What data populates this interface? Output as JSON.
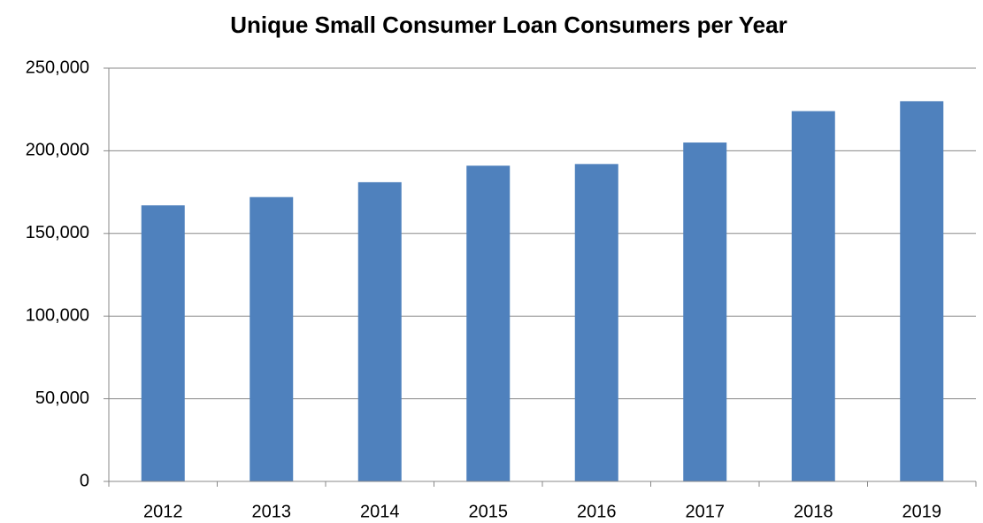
{
  "chart_data": {
    "type": "bar",
    "title": "Unique Small Consumer Loan Consumers per Year",
    "categories": [
      "2012",
      "2013",
      "2014",
      "2015",
      "2016",
      "2017",
      "2018",
      "2019"
    ],
    "values": [
      167000,
      172000,
      181000,
      191000,
      192000,
      205000,
      224000,
      230000
    ],
    "color": "#4f81bd",
    "ylim": [
      0,
      250000
    ],
    "yticks": [
      0,
      {
        "value": 50000,
        "label": "50,000"
      },
      {
        "value": 100000,
        "label": "100,000"
      },
      {
        "value": 150000,
        "label": "150,000"
      },
      {
        "value": 200000,
        "label": "200,000"
      },
      {
        "value": 250000,
        "label": "250,000"
      }
    ],
    "grid": true
  }
}
